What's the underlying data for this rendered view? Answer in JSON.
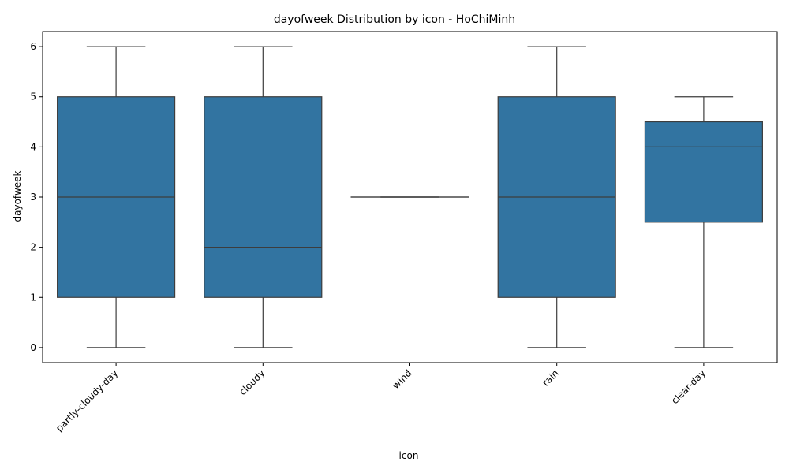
{
  "chart_data": {
    "type": "box",
    "title": "dayofweek Distribution by icon - HoChiMinh",
    "xlabel": "icon",
    "ylabel": "dayofweek",
    "ylim": [
      -0.3,
      6.3
    ],
    "yticks": [
      0,
      1,
      2,
      3,
      4,
      5,
      6
    ],
    "box_color": "#3274a1",
    "line_color": "#3d3d3d",
    "categories": [
      "partly-cloudy-day",
      "cloudy",
      "wind",
      "rain",
      "clear-day"
    ],
    "boxes": [
      {
        "category": "partly-cloudy-day",
        "whisker_low": 0,
        "q1": 1,
        "median": 3,
        "q3": 5,
        "whisker_high": 6
      },
      {
        "category": "cloudy",
        "whisker_low": 0,
        "q1": 1,
        "median": 2,
        "q3": 5,
        "whisker_high": 6
      },
      {
        "category": "wind",
        "whisker_low": 3,
        "q1": 3,
        "median": 3,
        "q3": 3,
        "whisker_high": 3
      },
      {
        "category": "rain",
        "whisker_low": 0,
        "q1": 1,
        "median": 3,
        "q3": 5,
        "whisker_high": 6
      },
      {
        "category": "clear-day",
        "whisker_low": 0,
        "q1": 2.5,
        "median": 4,
        "q3": 4.5,
        "whisker_high": 5
      }
    ],
    "grid": false,
    "legend": false
  }
}
